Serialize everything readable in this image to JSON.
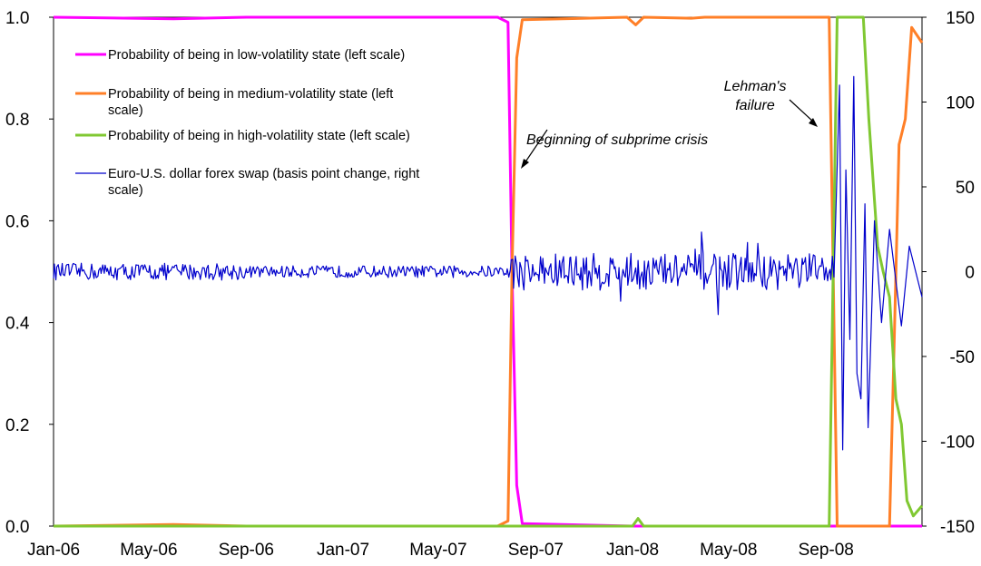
{
  "chart_data": {
    "type": "line",
    "title": "",
    "x_tick_labels": [
      "Jan-06",
      "May-06",
      "Sep-06",
      "Jan-07",
      "May-07",
      "Sep-07",
      "Jan-08",
      "May-08",
      "Sep-08"
    ],
    "x_range": [
      "2006-01-01",
      "2008-12-31"
    ],
    "y_left": {
      "ticks": [
        "0.0",
        "0.2",
        "0.4",
        "0.6",
        "0.8",
        "1.0"
      ],
      "min": 0,
      "max": 1
    },
    "y_right": {
      "ticks": [
        "-150",
        "-100",
        "-50",
        "0",
        "50",
        "100",
        "150"
      ],
      "min": -150,
      "max": 150
    },
    "legend_placement": "top-left",
    "grid": false,
    "series": [
      {
        "name": "Probability of being in low-volatility state (left scale)",
        "axis": "left",
        "color": "#ff00ff",
        "points": [
          [
            "2006-01-01",
            1.0
          ],
          [
            "2006-06-01",
            0.997
          ],
          [
            "2006-09-01",
            1.0
          ],
          [
            "2007-07-15",
            1.0
          ],
          [
            "2007-07-28",
            0.99
          ],
          [
            "2007-08-02",
            0.5
          ],
          [
            "2007-08-08",
            0.08
          ],
          [
            "2007-08-15",
            0.005
          ],
          [
            "2008-01-01",
            0.0
          ],
          [
            "2008-12-31",
            0.0
          ]
        ]
      },
      {
        "name": "Probability of being in medium-volatility state (left scale)",
        "axis": "left",
        "color": "#ff7f27",
        "points": [
          [
            "2006-01-01",
            0.0
          ],
          [
            "2006-06-01",
            0.003
          ],
          [
            "2006-09-01",
            0.0
          ],
          [
            "2007-07-15",
            0.0
          ],
          [
            "2007-07-28",
            0.01
          ],
          [
            "2007-08-02",
            0.5
          ],
          [
            "2007-08-08",
            0.92
          ],
          [
            "2007-08-15",
            0.995
          ],
          [
            "2007-12-25",
            1.0
          ],
          [
            "2008-01-05",
            0.985
          ],
          [
            "2008-01-15",
            1.0
          ],
          [
            "2008-03-15",
            0.998
          ],
          [
            "2008-04-01",
            1.0
          ],
          [
            "2008-09-05",
            1.0
          ],
          [
            "2008-09-10",
            0.5
          ],
          [
            "2008-09-15",
            0.0
          ],
          [
            "2008-11-20",
            0.0
          ],
          [
            "2008-11-25",
            0.3
          ],
          [
            "2008-12-02",
            0.75
          ],
          [
            "2008-12-10",
            0.8
          ],
          [
            "2008-12-18",
            0.98
          ],
          [
            "2008-12-31",
            0.95
          ]
        ]
      },
      {
        "name": "Probability of being in high-volatility state (left scale)",
        "axis": "left",
        "color": "#80c832",
        "points": [
          [
            "2006-01-01",
            0.0
          ],
          [
            "2008-01-01",
            0.0
          ],
          [
            "2008-01-08",
            0.015
          ],
          [
            "2008-01-15",
            0.0
          ],
          [
            "2008-09-05",
            0.0
          ],
          [
            "2008-09-10",
            0.5
          ],
          [
            "2008-09-15",
            1.0
          ],
          [
            "2008-10-18",
            1.0
          ],
          [
            "2008-10-25",
            0.8
          ],
          [
            "2008-11-05",
            0.55
          ],
          [
            "2008-11-12",
            0.5
          ],
          [
            "2008-11-20",
            0.45
          ],
          [
            "2008-11-28",
            0.25
          ],
          [
            "2008-12-05",
            0.2
          ],
          [
            "2008-12-12",
            0.05
          ],
          [
            "2008-12-20",
            0.02
          ],
          [
            "2008-12-31",
            0.04
          ]
        ]
      },
      {
        "name": "Euro-U.S. dollar forex swap (basis point change, right scale)",
        "axis": "right",
        "color": "#0000cc",
        "note": "daily changes; small noise (about ±5) in 2006–mid 2007, moderate (about ±10–20) from Aug 2007, very large after Sep 2008",
        "points": [
          [
            "2008-09-18",
            110
          ],
          [
            "2008-09-22",
            -105
          ],
          [
            "2008-09-26",
            60
          ],
          [
            "2008-10-01",
            -40
          ],
          [
            "2008-10-06",
            115
          ],
          [
            "2008-10-10",
            -60
          ],
          [
            "2008-10-15",
            -75
          ],
          [
            "2008-10-20",
            40
          ],
          [
            "2008-10-24",
            -92
          ],
          [
            "2008-11-01",
            30
          ],
          [
            "2008-11-10",
            -30
          ],
          [
            "2008-11-20",
            25
          ],
          [
            "2008-12-05",
            -32
          ],
          [
            "2008-12-15",
            15
          ],
          [
            "2008-12-31",
            -15
          ]
        ]
      }
    ],
    "legend": [
      "Probability of being in low-volatility state (left scale)",
      "Probability of being in medium-volatility state (left",
      "scale)",
      "Probability of being in high-volatility state (left scale)",
      "Euro-U.S. dollar forex swap (basis point change, right",
      "scale)"
    ],
    "annotations": [
      {
        "lines": [
          "Beginning of subprime crisis"
        ],
        "at_date": "2007-08-01"
      },
      {
        "lines": [
          "Lehman's",
          "failure"
        ],
        "at_date": "2008-09-15"
      }
    ]
  }
}
